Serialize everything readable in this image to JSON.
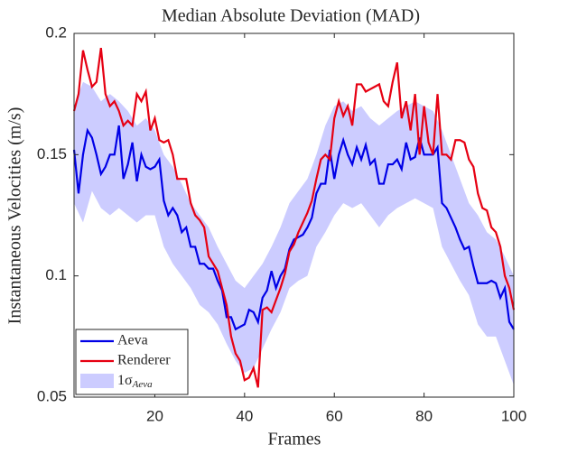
{
  "chart_data": {
    "type": "line",
    "title": "Median Absolute Deviation (MAD)",
    "x_label": "Frames",
    "y_label": "Instantaneous Velocities (m/s)",
    "xlim": [
      2,
      100
    ],
    "xticks": [
      20,
      40,
      60,
      80,
      100
    ],
    "ylim": [
      0.05,
      0.2
    ],
    "yticks": [
      0.05,
      0.1,
      0.15,
      0.2
    ],
    "legend": "lower left",
    "x": [
      2,
      3,
      4,
      5,
      6,
      7,
      8,
      9,
      10,
      11,
      12,
      13,
      14,
      15,
      16,
      17,
      18,
      19,
      20,
      21,
      22,
      23,
      24,
      25,
      26,
      27,
      28,
      29,
      30,
      31,
      32,
      33,
      34,
      35,
      36,
      37,
      38,
      39,
      40,
      41,
      42,
      43,
      44,
      45,
      46,
      47,
      48,
      49,
      50,
      51,
      52,
      53,
      54,
      55,
      56,
      57,
      58,
      59,
      60,
      61,
      62,
      63,
      64,
      65,
      66,
      67,
      68,
      69,
      70,
      71,
      72,
      73,
      74,
      75,
      76,
      77,
      78,
      79,
      80,
      81,
      82,
      83,
      84,
      85,
      86,
      87,
      88,
      89,
      90,
      91,
      92,
      93,
      94,
      95,
      96,
      97,
      98,
      99,
      100
    ],
    "series": [
      {
        "name": "Aeva",
        "color": "#0000e6",
        "values": [
          0.152,
          0.134,
          0.15,
          0.16,
          0.157,
          0.15,
          0.142,
          0.145,
          0.15,
          0.15,
          0.162,
          0.14,
          0.146,
          0.155,
          0.139,
          0.15,
          0.145,
          0.144,
          0.145,
          0.148,
          0.131,
          0.125,
          0.128,
          0.125,
          0.118,
          0.12,
          0.112,
          0.112,
          0.105,
          0.105,
          0.103,
          0.103,
          0.098,
          0.094,
          0.083,
          0.083,
          0.078,
          0.079,
          0.08,
          0.086,
          0.085,
          0.081,
          0.091,
          0.094,
          0.102,
          0.095,
          0.1,
          0.103,
          0.111,
          0.115,
          0.116,
          0.117,
          0.12,
          0.124,
          0.134,
          0.138,
          0.138,
          0.152,
          0.14,
          0.15,
          0.156,
          0.15,
          0.146,
          0.153,
          0.148,
          0.154,
          0.146,
          0.148,
          0.138,
          0.138,
          0.146,
          0.146,
          0.148,
          0.144,
          0.155,
          0.148,
          0.149,
          0.157,
          0.15,
          0.15,
          0.15,
          0.153,
          0.13,
          0.128,
          0.124,
          0.12,
          0.115,
          0.111,
          0.112,
          0.104,
          0.097,
          0.097,
          0.097,
          0.098,
          0.097,
          0.091,
          0.095,
          0.081,
          0.078
        ]
      },
      {
        "name": "Renderer",
        "color": "#e60012",
        "values": [
          0.168,
          0.175,
          0.193,
          0.185,
          0.178,
          0.18,
          0.194,
          0.175,
          0.17,
          0.172,
          0.168,
          0.162,
          0.164,
          0.162,
          0.175,
          0.172,
          0.176,
          0.16,
          0.165,
          0.156,
          0.155,
          0.156,
          0.15,
          0.14,
          0.14,
          0.14,
          0.13,
          0.125,
          0.123,
          0.12,
          0.108,
          0.105,
          0.102,
          0.095,
          0.088,
          0.075,
          0.068,
          0.065,
          0.057,
          0.058,
          0.062,
          0.054,
          0.086,
          0.087,
          0.085,
          0.09,
          0.095,
          0.101,
          0.11,
          0.113,
          0.118,
          0.122,
          0.126,
          0.131,
          0.14,
          0.148,
          0.15,
          0.148,
          0.165,
          0.172,
          0.166,
          0.17,
          0.162,
          0.179,
          0.179,
          0.176,
          0.177,
          0.178,
          0.179,
          0.172,
          0.17,
          0.18,
          0.188,
          0.165,
          0.172,
          0.16,
          0.175,
          0.15,
          0.17,
          0.155,
          0.15,
          0.175,
          0.15,
          0.15,
          0.148,
          0.156,
          0.156,
          0.155,
          0.148,
          0.145,
          0.134,
          0.128,
          0.127,
          0.12,
          0.118,
          0.112,
          0.1,
          0.095,
          0.086
        ]
      }
    ],
    "band": {
      "name": "1σ",
      "subscript": "Aeva",
      "color": "#ccccff",
      "x": [
        2,
        4,
        6,
        8,
        10,
        12,
        14,
        16,
        18,
        20,
        22,
        24,
        26,
        28,
        30,
        32,
        34,
        36,
        38,
        40,
        42,
        44,
        46,
        48,
        50,
        52,
        54,
        56,
        58,
        60,
        62,
        64,
        66,
        68,
        70,
        72,
        74,
        76,
        78,
        80,
        82,
        84,
        86,
        88,
        90,
        92,
        94,
        96,
        98,
        100
      ],
      "upper": [
        0.17,
        0.18,
        0.178,
        0.172,
        0.175,
        0.172,
        0.168,
        0.162,
        0.165,
        0.16,
        0.15,
        0.145,
        0.138,
        0.13,
        0.125,
        0.12,
        0.112,
        0.105,
        0.098,
        0.095,
        0.1,
        0.105,
        0.112,
        0.12,
        0.13,
        0.135,
        0.14,
        0.15,
        0.162,
        0.17,
        0.172,
        0.168,
        0.17,
        0.165,
        0.162,
        0.165,
        0.168,
        0.17,
        0.172,
        0.17,
        0.168,
        0.16,
        0.15,
        0.14,
        0.13,
        0.125,
        0.118,
        0.115,
        0.108,
        0.1
      ],
      "lower": [
        0.13,
        0.122,
        0.135,
        0.128,
        0.125,
        0.128,
        0.125,
        0.122,
        0.125,
        0.125,
        0.112,
        0.105,
        0.1,
        0.095,
        0.088,
        0.085,
        0.08,
        0.072,
        0.065,
        0.06,
        0.062,
        0.07,
        0.078,
        0.085,
        0.095,
        0.098,
        0.1,
        0.112,
        0.118,
        0.125,
        0.13,
        0.128,
        0.13,
        0.125,
        0.12,
        0.125,
        0.128,
        0.13,
        0.132,
        0.13,
        0.128,
        0.112,
        0.105,
        0.098,
        0.092,
        0.08,
        0.075,
        0.075,
        0.065,
        0.055
      ]
    }
  }
}
